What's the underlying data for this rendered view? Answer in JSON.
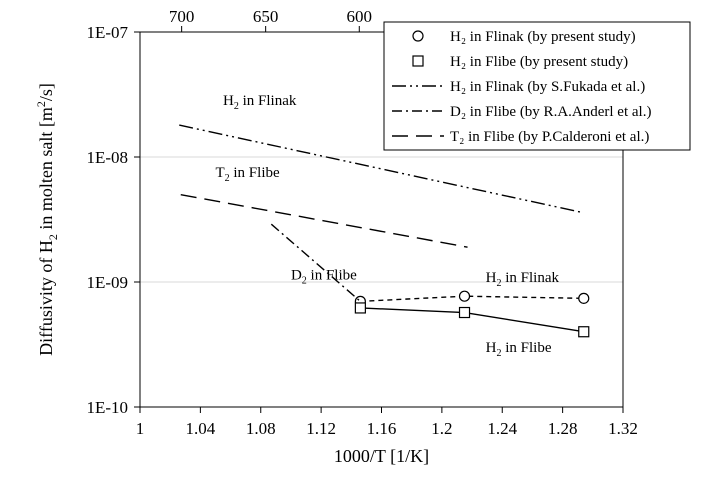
{
  "chart_data": {
    "type": "line",
    "xlabel": "1000/T [1/K]",
    "ylabel": {
      "prefix": "Diffusivity of H",
      "sub": "2",
      "suffix": " in molten salt [m",
      "sup": "2",
      "end": "/s]"
    },
    "xlim": [
      1.0,
      1.32
    ],
    "x_ticks": [
      "1",
      "1.04",
      "1.08",
      "1.12",
      "1.16",
      "1.2",
      "1.24",
      "1.28",
      "1.32"
    ],
    "ylim": [
      1e-10,
      1e-07
    ],
    "y_scale": "log",
    "y_ticks": [
      "1E-10",
      "1E-09",
      "1E-08",
      "1E-07"
    ],
    "top_axis_ticks": [
      "700",
      "650",
      "600"
    ],
    "grid": "horizontal",
    "legend_position": "top-right",
    "series": [
      {
        "key": "h2_flinak_present",
        "name": "H₂ in Flinak (by present study)",
        "marker": "circle",
        "line": "dashed",
        "x": [
          1.146,
          1.215,
          1.294
        ],
        "y": [
          7e-10,
          7.7e-10,
          7.4e-10
        ]
      },
      {
        "key": "h2_flibe_present",
        "name": "H₂ in Flibe (by present study)",
        "marker": "square",
        "line": "solid",
        "x": [
          1.146,
          1.215,
          1.294
        ],
        "y": [
          6.2e-10,
          5.7e-10,
          4e-10
        ]
      },
      {
        "key": "h2_flinak_fukada",
        "name": "H₂ in Flinak (by S.Fukada et al.)",
        "marker": "none",
        "line": "dash-dot-dot",
        "x": [
          1.026,
          1.293
        ],
        "y": [
          1.8e-08,
          3.6e-09
        ]
      },
      {
        "key": "d2_flibe_anderl",
        "name": "D₂ in Flibe (by R.A.Anderl et al.)",
        "marker": "none",
        "line": "dash-dot",
        "x": [
          1.087,
          1.146
        ],
        "y": [
          2.9e-09,
          7e-10
        ]
      },
      {
        "key": "t2_flibe_calderoni",
        "name": "T₂ in Flibe (by P.Calderoni et al.)",
        "marker": "none",
        "line": "long-dash",
        "x": [
          1.027,
          1.217
        ],
        "y": [
          5e-09,
          1.9e-09
        ]
      }
    ],
    "annotations": [
      {
        "key": "a1",
        "species": "H",
        "sub": "2",
        "text": " in Flinak",
        "x": 1.055,
        "y": 2.6e-08
      },
      {
        "key": "a2",
        "species": "T",
        "sub": "2",
        "text": " in Flibe",
        "x": 1.05,
        "y": 6.9e-09
      },
      {
        "key": "a3",
        "species": "D",
        "sub": "2",
        "text": " in Flibe",
        "x": 1.1,
        "y": 1.05e-09
      },
      {
        "key": "a4",
        "species": "H",
        "sub": "2",
        "text": " in Flinak",
        "x": 1.229,
        "y": 1e-09
      },
      {
        "key": "a5",
        "species": "H",
        "sub": "2",
        "text": " in Flibe",
        "x": 1.229,
        "y": 2.75e-10
      }
    ]
  }
}
